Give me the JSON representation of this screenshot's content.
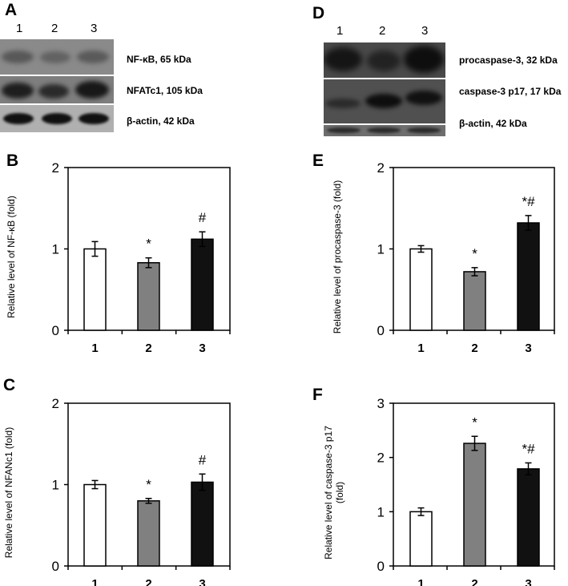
{
  "panels": {
    "A": {
      "letter": "A",
      "lanes": [
        "1",
        "2",
        "3"
      ],
      "blots": [
        {
          "label": "NF-κB, 65 kDa"
        },
        {
          "label": "NFATc1, 105 kDa"
        },
        {
          "label": "β-actin, 42 kDa"
        }
      ]
    },
    "D": {
      "letter": "D",
      "lanes": [
        "1",
        "2",
        "3"
      ],
      "blots": [
        {
          "label": "procaspase-3, 32 kDa"
        },
        {
          "label": "caspase-3 p17, 17 kDa"
        },
        {
          "label": "β-actin, 42 kDa"
        }
      ]
    },
    "B": {
      "letter": "B"
    },
    "C": {
      "letter": "C"
    },
    "E": {
      "letter": "E"
    },
    "F": {
      "letter": "F"
    }
  },
  "colors": {
    "bar1": "#ffffff",
    "bar2": "#808080",
    "bar3": "#111111",
    "axis": "#000000"
  },
  "chart_data": [
    {
      "panel": "B",
      "type": "bar",
      "title": "",
      "categories": [
        "1",
        "2",
        "3"
      ],
      "values": [
        1.0,
        0.83,
        1.12
      ],
      "errors": [
        0.09,
        0.06,
        0.09
      ],
      "annotations": [
        "",
        "*",
        "#"
      ],
      "xlabel": "",
      "ylabel": "Relative level of NF-κB (fold)",
      "ylim": [
        0,
        2
      ],
      "yticks": [
        "0",
        "1",
        "2"
      ],
      "grid": false,
      "legend": null
    },
    {
      "panel": "C",
      "type": "bar",
      "title": "",
      "categories": [
        "1",
        "2",
        "3"
      ],
      "values": [
        1.0,
        0.8,
        1.03
      ],
      "errors": [
        0.05,
        0.03,
        0.1
      ],
      "annotations": [
        "",
        "*",
        "#"
      ],
      "xlabel": "",
      "ylabel": "Relative level of NFANc1 (fold)",
      "ylim": [
        0,
        2
      ],
      "yticks": [
        "0",
        "1",
        "2"
      ],
      "grid": false,
      "legend": null
    },
    {
      "panel": "E",
      "type": "bar",
      "title": "",
      "categories": [
        "1",
        "2",
        "3"
      ],
      "values": [
        1.0,
        0.72,
        1.32
      ],
      "errors": [
        0.04,
        0.05,
        0.09
      ],
      "annotations": [
        "",
        "*",
        "*#"
      ],
      "xlabel": "",
      "ylabel": "Relative level of  procaspase-3 (fold)",
      "ylim": [
        0,
        2
      ],
      "yticks": [
        "0",
        "1",
        "2"
      ],
      "grid": false,
      "legend": null
    },
    {
      "panel": "F",
      "type": "bar",
      "title": "",
      "categories": [
        "1",
        "2",
        "3"
      ],
      "values": [
        1.0,
        2.26,
        1.79
      ],
      "errors": [
        0.07,
        0.13,
        0.11
      ],
      "annotations": [
        "",
        "*",
        "*#"
      ],
      "xlabel": "",
      "ylabel": "Relative level of caspase-3 p17 (fold)",
      "ylabel_lines": [
        "Relative level of caspase-3 p17",
        "(fold)"
      ],
      "ylim": [
        0,
        3
      ],
      "yticks": [
        "0",
        "1",
        "2",
        "3"
      ],
      "grid": false,
      "legend": null
    }
  ]
}
